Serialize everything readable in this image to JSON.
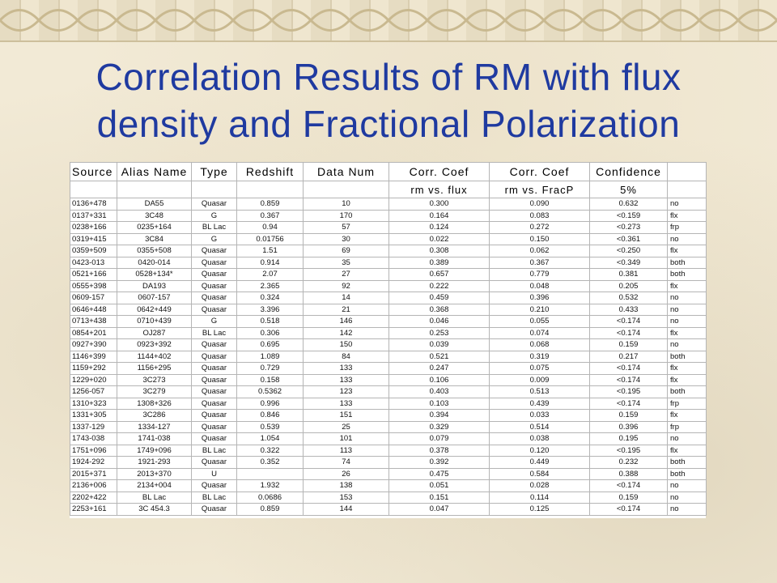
{
  "title": {
    "line1": "Correlation Results of RM with flux",
    "line2": "density and Fractional Polarization"
  },
  "table": {
    "headers": [
      "Source",
      "Alias Name",
      "Type",
      "Redshift",
      "Data Num",
      "Corr. Coef",
      "Corr. Coef",
      "Confidence",
      ""
    ],
    "subheaders": [
      "",
      "",
      "",
      "",
      "",
      "rm vs. flux",
      "rm vs. FracP",
      "5%",
      ""
    ],
    "rows": [
      [
        "0136+478",
        "DA55",
        "Quasar",
        "0.859",
        "10",
        "0.300",
        "0.090",
        "0.632",
        "no"
      ],
      [
        "0137+331",
        "3C48",
        "G",
        "0.367",
        "170",
        "0.164",
        "0.083",
        "<0.159",
        "flx"
      ],
      [
        "0238+166",
        "0235+164",
        "BL Lac",
        "0.94",
        "57",
        "0.124",
        "0.272",
        "<0.273",
        "frp"
      ],
      [
        "0319+415",
        "3C84",
        "G",
        "0.01756",
        "30",
        "0.022",
        "0.150",
        "<0.361",
        "no"
      ],
      [
        "0359+509",
        "0355+508",
        "Quasar",
        "1.51",
        "69",
        "0.308",
        "0.062",
        "<0.250",
        "flx"
      ],
      [
        "0423-013",
        "0420-014",
        "Quasar",
        "0.914",
        "35",
        "0.389",
        "0.367",
        "<0.349",
        "both"
      ],
      [
        "0521+166",
        "0528+134*",
        "Quasar",
        "2.07",
        "27",
        "0.657",
        "0.779",
        "0.381",
        "both"
      ],
      [
        "0555+398",
        "DA193",
        "Quasar",
        "2.365",
        "92",
        "0.222",
        "0.048",
        "0.205",
        "flx"
      ],
      [
        "0609-157",
        "0607-157",
        "Quasar",
        "0.324",
        "14",
        "0.459",
        "0.396",
        "0.532",
        "no"
      ],
      [
        "0646+448",
        "0642+449",
        "Quasar",
        "3.396",
        "21",
        "0.368",
        "0.210",
        "0.433",
        "no"
      ],
      [
        "0713+438",
        "0710+439",
        "G",
        "0.518",
        "146",
        "0.046",
        "0.055",
        "<0.174",
        "no"
      ],
      [
        "0854+201",
        "OJ287",
        "BL Lac",
        "0.306",
        "142",
        "0.253",
        "0.074",
        "<0.174",
        "flx"
      ],
      [
        "0927+390",
        "0923+392",
        "Quasar",
        "0.695",
        "150",
        "0.039",
        "0.068",
        "0.159",
        "no"
      ],
      [
        "1146+399",
        "1144+402",
        "Quasar",
        "1.089",
        "84",
        "0.521",
        "0.319",
        "0.217",
        "both"
      ],
      [
        "1159+292",
        "1156+295",
        "Quasar",
        "0.729",
        "133",
        "0.247",
        "0.075",
        "<0.174",
        "flx"
      ],
      [
        "1229+020",
        "3C273",
        "Quasar",
        "0.158",
        "133",
        "0.106",
        "0.009",
        "<0.174",
        "flx"
      ],
      [
        "1256-057",
        "3C279",
        "Quasar",
        "0.5362",
        "123",
        "0.403",
        "0.513",
        "<0.195",
        "both"
      ],
      [
        "1310+323",
        "1308+326",
        "Quasar",
        "0.996",
        "133",
        "0.103",
        "0.439",
        "<0.174",
        "frp"
      ],
      [
        "1331+305",
        "3C286",
        "Quasar",
        "0.846",
        "151",
        "0.394",
        "0.033",
        "0.159",
        "flx"
      ],
      [
        "1337-129",
        "1334-127",
        "Quasar",
        "0.539",
        "25",
        "0.329",
        "0.514",
        "0.396",
        "frp"
      ],
      [
        "1743-038",
        "1741-038",
        "Quasar",
        "1.054",
        "101",
        "0.079",
        "0.038",
        "0.195",
        "no"
      ],
      [
        "1751+096",
        "1749+096",
        "BL Lac",
        "0.322",
        "113",
        "0.378",
        "0.120",
        "<0.195",
        "flx"
      ],
      [
        "1924-292",
        "1921-293",
        "Quasar",
        "0.352",
        "74",
        "0.392",
        "0.449",
        "0.232",
        "both"
      ],
      [
        "2015+371",
        "2013+370",
        "U",
        "",
        "26",
        "0.475",
        "0.584",
        "0.388",
        "both"
      ],
      [
        "2136+006",
        "2134+004",
        "Quasar",
        "1.932",
        "138",
        "0.051",
        "0.028",
        "<0.174",
        "no"
      ],
      [
        "2202+422",
        "BL Lac",
        "BL Lac",
        "0.0686",
        "153",
        "0.151",
        "0.114",
        "0.159",
        "no"
      ],
      [
        "2253+161",
        "3C 454.3",
        "Quasar",
        "0.859",
        "144",
        "0.047",
        "0.125",
        "<0.174",
        "no"
      ]
    ]
  }
}
